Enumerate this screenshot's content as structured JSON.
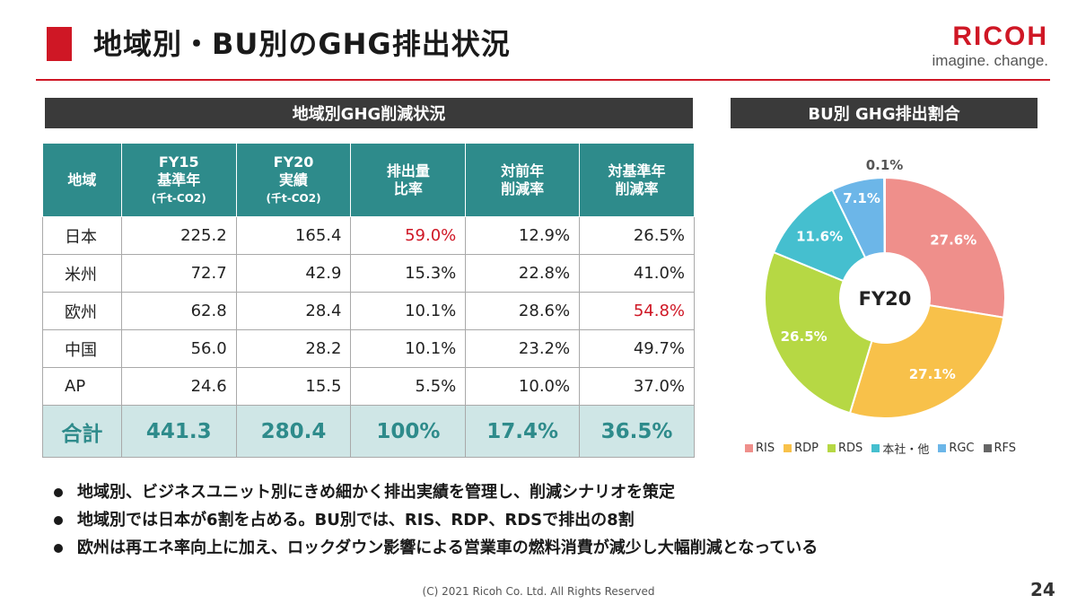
{
  "header": {
    "title": "地域別・BU別のGHG排出状況",
    "logo": "RICOH",
    "tagline": "imagine. change."
  },
  "left_section": {
    "heading": "地域別GHG削減状況",
    "columns": [
      {
        "lines": [
          "地域"
        ],
        "unit": ""
      },
      {
        "lines": [
          "FY15",
          "基準年"
        ],
        "unit": "(千t-CO2)"
      },
      {
        "lines": [
          "FY20",
          "実績"
        ],
        "unit": "(千t-CO2)"
      },
      {
        "lines": [
          "排出量",
          "比率"
        ],
        "unit": ""
      },
      {
        "lines": [
          "対前年",
          "削減率"
        ],
        "unit": ""
      },
      {
        "lines": [
          "対基準年",
          "削減率"
        ],
        "unit": ""
      }
    ],
    "rows": [
      {
        "cells": [
          "日本",
          "225.2",
          "165.4",
          "59.0%",
          "12.9%",
          "26.5%"
        ],
        "red": [
          3
        ]
      },
      {
        "cells": [
          "米州",
          "72.7",
          "42.9",
          "15.3%",
          "22.8%",
          "41.0%"
        ],
        "red": []
      },
      {
        "cells": [
          "欧州",
          "62.8",
          "28.4",
          "10.1%",
          "28.6%",
          "54.8%"
        ],
        "red": [
          5
        ]
      },
      {
        "cells": [
          "中国",
          "56.0",
          "28.2",
          "10.1%",
          "23.2%",
          "49.7%"
        ],
        "red": []
      },
      {
        "cells": [
          "AP",
          "24.6",
          "15.5",
          "5.5%",
          "10.0%",
          "37.0%"
        ],
        "red": []
      }
    ],
    "total": [
      "合計",
      "441.3",
      "280.4",
      "100%",
      "17.4%",
      "36.5%"
    ],
    "accent_red": "#cf1725",
    "header_color": "#2e8b8b"
  },
  "right_section": {
    "heading": "BU別 GHG排出割合"
  },
  "chart_data": {
    "type": "pie",
    "subtype": "donut",
    "center_label": "FY20",
    "slices": [
      {
        "name": "RIS",
        "value": 27.6,
        "label": "27.6%",
        "color": "#ef8f8b"
      },
      {
        "name": "RDP",
        "value": 27.1,
        "label": "27.1%",
        "color": "#f8c14a"
      },
      {
        "name": "RDS",
        "value": 26.5,
        "label": "26.5%",
        "color": "#b6d844"
      },
      {
        "name": "本社・他",
        "value": 11.6,
        "label": "11.6%",
        "color": "#45bfcf"
      },
      {
        "name": "RGC",
        "value": 7.1,
        "label": "7.1%",
        "color": "#6cb6e8"
      },
      {
        "name": "RFS",
        "value": 0.1,
        "label": "0.1%",
        "color": "#666666"
      }
    ],
    "legend_position": "bottom"
  },
  "bullets": [
    "地域別、ビジネスユニット別にきめ細かく排出実績を管理し、削減シナリオを策定",
    "地域別では日本が6割を占める。BU別では、RIS、RDP、RDSで排出の8割",
    "欧州は再エネ率向上に加え、ロックダウン影響による営業車の燃料消費が減少し大幅削減となっている"
  ],
  "footer": {
    "copyright": "(C) 2021 Ricoh Co. Ltd. All Rights Reserved",
    "page_number": "24"
  }
}
